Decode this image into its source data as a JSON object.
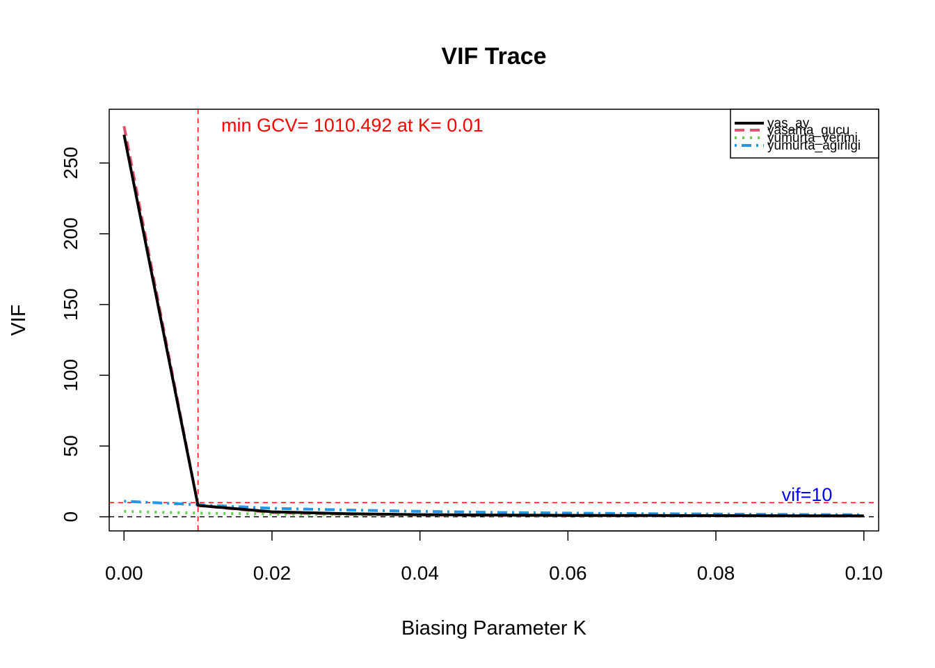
{
  "chart_data": {
    "type": "line",
    "title": "VIF Trace",
    "xlabel": "Biasing Parameter K",
    "ylabel": "VIF",
    "xlim": [
      -0.002,
      0.102
    ],
    "ylim": [
      -10,
      288
    ],
    "x_ticks": [
      0.0,
      0.02,
      0.04,
      0.06,
      0.08,
      0.1
    ],
    "x_tick_labels": [
      "0.00",
      "0.02",
      "0.04",
      "0.06",
      "0.08",
      "0.10"
    ],
    "y_ticks": [
      0,
      50,
      100,
      150,
      200,
      250
    ],
    "y_tick_labels": [
      "0",
      "50",
      "100",
      "150",
      "200",
      "250"
    ],
    "legend_position": "top-right",
    "grid": false,
    "x": [
      0.0,
      0.01,
      0.02,
      0.03,
      0.04,
      0.05,
      0.06,
      0.07,
      0.08,
      0.09,
      0.1
    ],
    "series": [
      {
        "name": "yas_ay",
        "color": "#000000",
        "dash": "solid",
        "values": [
          270,
          8,
          3.5,
          2.2,
          1.5,
          1.2,
          1.0,
          0.9,
          0.8,
          0.7,
          0.6
        ]
      },
      {
        "name": "yasama_gucu",
        "color": "#DF536B",
        "dash": "dashed",
        "values": [
          276,
          8,
          3.0,
          1.8,
          1.2,
          1.0,
          0.8,
          0.7,
          0.6,
          0.5,
          0.5
        ]
      },
      {
        "name": "yumurta_verimi",
        "color": "#61D04F",
        "dash": "dotted",
        "values": [
          3.8,
          2.6,
          1.9,
          1.4,
          1.1,
          0.9,
          0.8,
          0.7,
          0.6,
          0.55,
          0.5
        ]
      },
      {
        "name": "yumurta_agirligi",
        "color": "#2297E6",
        "dash": "dotdash",
        "values": [
          11,
          8.5,
          6.0,
          4.8,
          3.8,
          3.1,
          2.6,
          2.2,
          1.9,
          1.6,
          1.4
        ]
      }
    ],
    "reference_lines": {
      "vertical_k": 0.01,
      "vertical_color": "#FF0000",
      "horizontal_vif": 10,
      "horizontal_color": "#FF0000",
      "zero_line": 0,
      "zero_color": "#000000"
    },
    "annotations": {
      "gcv_text": "min GCV= 1010.492 at K= 0.01",
      "gcv_color": "#FF0000",
      "vif_text": "vif=10",
      "vif_color": "#0000FF"
    }
  }
}
